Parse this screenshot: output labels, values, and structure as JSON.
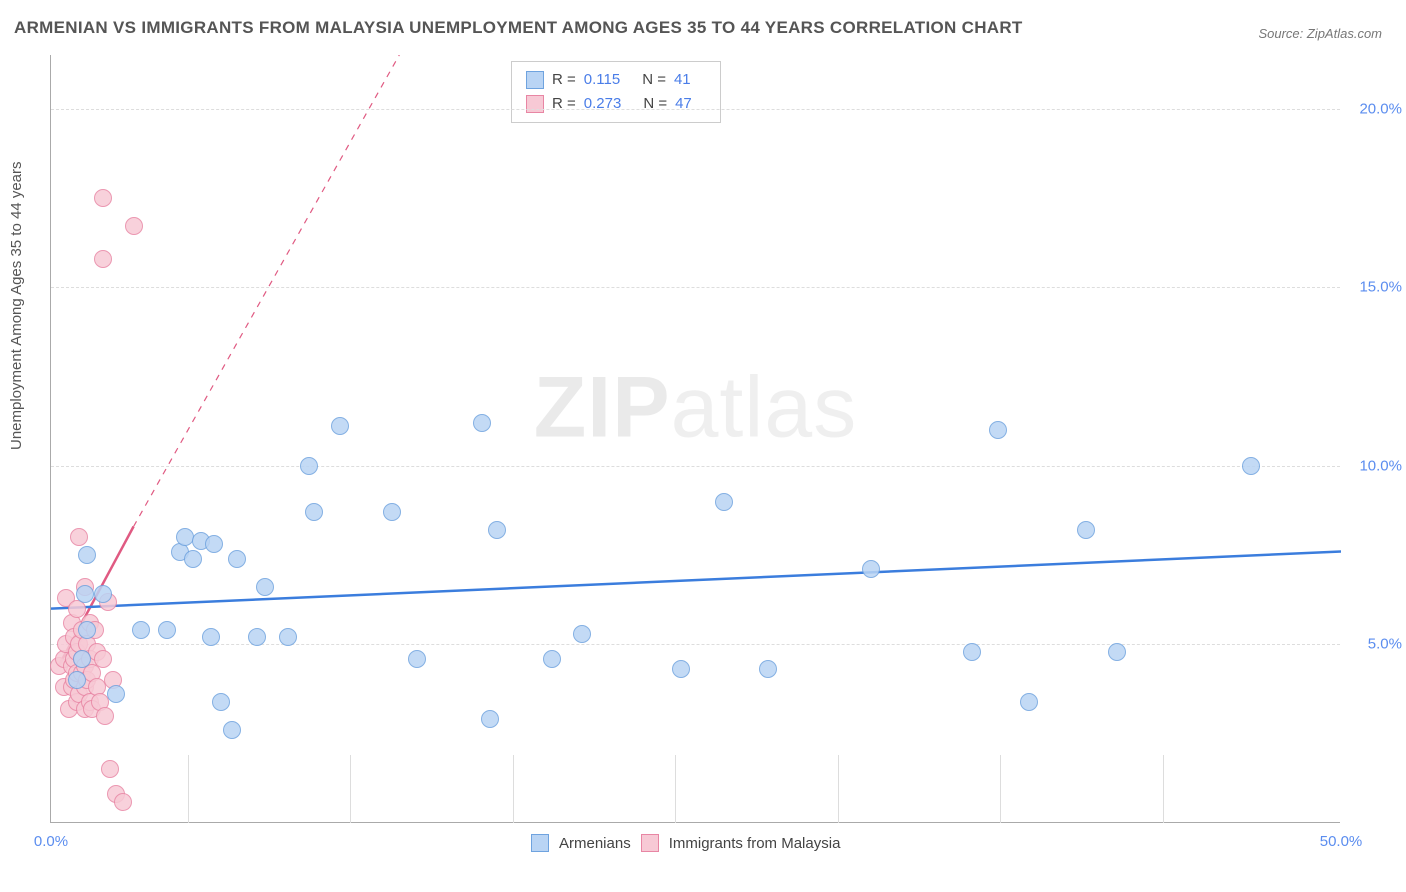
{
  "title": "ARMENIAN VS IMMIGRANTS FROM MALAYSIA UNEMPLOYMENT AMONG AGES 35 TO 44 YEARS CORRELATION CHART",
  "source": "Source: ZipAtlas.com",
  "y_axis_label": "Unemployment Among Ages 35 to 44 years",
  "watermark_bold": "ZIP",
  "watermark_thin": "atlas",
  "chart": {
    "type": "scatter",
    "xlim": [
      0,
      50
    ],
    "ylim": [
      0,
      21.5
    ],
    "x_ticks": [
      0,
      50
    ],
    "x_tick_labels": [
      "0.0%",
      "50.0%"
    ],
    "x_minor_marks": [
      5.3,
      11.6,
      17.9,
      24.2,
      30.5,
      36.8,
      43.1
    ],
    "y_ticks": [
      5,
      10,
      15,
      20
    ],
    "y_tick_labels": [
      "5.0%",
      "10.0%",
      "15.0%",
      "20.0%"
    ],
    "background_color": "#ffffff",
    "grid_color": "#dddddd",
    "point_radius": 9,
    "series": [
      {
        "name": "Armenians",
        "fill": "#b9d4f4",
        "stroke": "#6fa3df",
        "trend_color": "#3b7ddd",
        "trend": {
          "x1": 0,
          "y1": 6.0,
          "x2": 50,
          "y2": 7.6
        },
        "points": [
          [
            1.0,
            4.0
          ],
          [
            1.2,
            4.6
          ],
          [
            1.3,
            6.4
          ],
          [
            1.4,
            5.4
          ],
          [
            1.4,
            7.5
          ],
          [
            2.0,
            6.4
          ],
          [
            2.5,
            3.6
          ],
          [
            3.5,
            5.4
          ],
          [
            4.5,
            5.4
          ],
          [
            5.0,
            7.6
          ],
          [
            5.2,
            8.0
          ],
          [
            5.5,
            7.4
          ],
          [
            5.8,
            7.9
          ],
          [
            6.2,
            5.2
          ],
          [
            6.3,
            7.8
          ],
          [
            6.6,
            3.4
          ],
          [
            7.0,
            2.6
          ],
          [
            7.2,
            7.4
          ],
          [
            8.0,
            5.2
          ],
          [
            8.3,
            6.6
          ],
          [
            9.2,
            5.2
          ],
          [
            10.0,
            10.0
          ],
          [
            10.2,
            8.7
          ],
          [
            11.2,
            11.1
          ],
          [
            13.2,
            8.7
          ],
          [
            14.2,
            4.6
          ],
          [
            16.7,
            11.2
          ],
          [
            17.0,
            2.9
          ],
          [
            17.3,
            8.2
          ],
          [
            19.4,
            4.6
          ],
          [
            20.6,
            5.3
          ],
          [
            24.4,
            4.3
          ],
          [
            26.1,
            9.0
          ],
          [
            27.8,
            4.3
          ],
          [
            31.8,
            7.1
          ],
          [
            35.7,
            4.8
          ],
          [
            36.7,
            11.0
          ],
          [
            37.9,
            3.4
          ],
          [
            40.1,
            8.2
          ],
          [
            41.3,
            4.8
          ],
          [
            46.5,
            10.0
          ]
        ]
      },
      {
        "name": "Immigrants from Malaysia",
        "fill": "#f7c9d5",
        "stroke": "#e886a4",
        "trend_color": "#e05a82",
        "trend_solid": {
          "x1": 0.3,
          "y1": 4.4,
          "x2": 3.2,
          "y2": 8.3
        },
        "trend_dash": {
          "x1": 3.2,
          "y1": 8.3,
          "x2": 13.5,
          "y2": 21.5
        },
        "points": [
          [
            0.3,
            4.4
          ],
          [
            0.5,
            3.8
          ],
          [
            0.5,
            4.6
          ],
          [
            0.6,
            5.0
          ],
          [
            0.6,
            6.3
          ],
          [
            0.7,
            3.2
          ],
          [
            0.8,
            3.8
          ],
          [
            0.8,
            4.4
          ],
          [
            0.8,
            5.6
          ],
          [
            0.9,
            4.0
          ],
          [
            0.9,
            4.6
          ],
          [
            0.9,
            5.2
          ],
          [
            1.0,
            3.4
          ],
          [
            1.0,
            4.2
          ],
          [
            1.0,
            4.8
          ],
          [
            1.0,
            6.0
          ],
          [
            1.1,
            3.6
          ],
          [
            1.1,
            5.0
          ],
          [
            1.1,
            8.0
          ],
          [
            1.2,
            4.2
          ],
          [
            1.2,
            4.6
          ],
          [
            1.2,
            5.4
          ],
          [
            1.3,
            3.2
          ],
          [
            1.3,
            3.8
          ],
          [
            1.3,
            4.4
          ],
          [
            1.3,
            6.6
          ],
          [
            1.4,
            4.0
          ],
          [
            1.4,
            5.0
          ],
          [
            1.5,
            3.4
          ],
          [
            1.5,
            4.6
          ],
          [
            1.5,
            5.6
          ],
          [
            1.6,
            3.2
          ],
          [
            1.6,
            4.2
          ],
          [
            1.7,
            5.4
          ],
          [
            1.8,
            3.8
          ],
          [
            1.8,
            4.8
          ],
          [
            1.9,
            3.4
          ],
          [
            2.0,
            4.6
          ],
          [
            2.1,
            3.0
          ],
          [
            2.2,
            6.2
          ],
          [
            2.3,
            1.5
          ],
          [
            2.4,
            4.0
          ],
          [
            2.5,
            0.8
          ],
          [
            2.0,
            15.8
          ],
          [
            2.0,
            17.5
          ],
          [
            2.8,
            0.6
          ],
          [
            3.2,
            16.7
          ]
        ]
      }
    ]
  },
  "stats": [
    {
      "swatch_fill": "#b9d4f4",
      "swatch_stroke": "#6fa3df",
      "r": "0.115",
      "n": "41"
    },
    {
      "swatch_fill": "#f7c9d5",
      "swatch_stroke": "#e886a4",
      "r": "0.273",
      "n": "47"
    }
  ],
  "stats_labels": {
    "r": "R  =",
    "n": "N  ="
  },
  "legend": [
    {
      "swatch_fill": "#b9d4f4",
      "swatch_stroke": "#6fa3df",
      "label": "Armenians"
    },
    {
      "swatch_fill": "#f7c9d5",
      "swatch_stroke": "#e886a4",
      "label": "Immigrants from Malaysia"
    }
  ]
}
